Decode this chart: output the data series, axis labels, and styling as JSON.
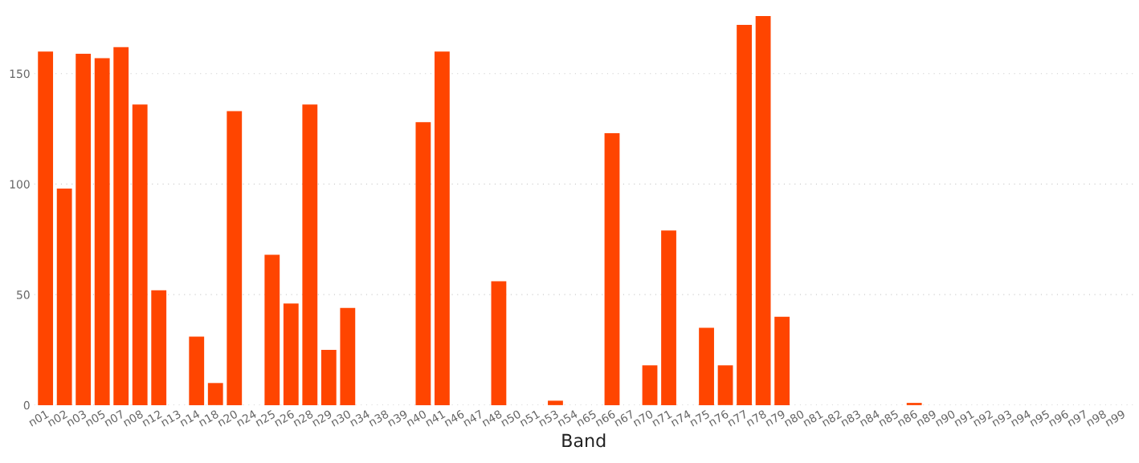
{
  "chart_data": {
    "type": "bar",
    "xlabel": "Band",
    "categories": [
      "n01",
      "n02",
      "n03",
      "n05",
      "n07",
      "n08",
      "n12",
      "n13",
      "n14",
      "n18",
      "n20",
      "n24",
      "n25",
      "n26",
      "n28",
      "n29",
      "n30",
      "n34",
      "n38",
      "n39",
      "n40",
      "n41",
      "n46",
      "n47",
      "n48",
      "n50",
      "n51",
      "n53",
      "n54",
      "n65",
      "n66",
      "n67",
      "n70",
      "n71",
      "n74",
      "n75",
      "n76",
      "n77",
      "n78",
      "n79",
      "n80",
      "n81",
      "n82",
      "n83",
      "n84",
      "n85",
      "n86",
      "n89",
      "n90",
      "n91",
      "n92",
      "n93",
      "n94",
      "n95",
      "n96",
      "n97",
      "n98",
      "n99"
    ],
    "values": [
      160,
      98,
      159,
      157,
      162,
      136,
      52,
      0,
      31,
      10,
      133,
      0,
      68,
      46,
      136,
      25,
      44,
      0,
      0,
      0,
      128,
      160,
      0,
      0,
      56,
      0,
      0,
      2,
      0,
      0,
      123,
      0,
      18,
      79,
      0,
      35,
      18,
      172,
      176,
      40,
      0,
      0,
      0,
      0,
      0,
      0,
      1,
      0,
      0,
      0,
      0,
      0,
      0,
      0,
      0,
      0,
      0,
      0
    ],
    "color": "#ff4500",
    "ylim": [
      0,
      177
    ],
    "yticks": [
      0,
      50,
      100,
      150
    ],
    "grid": "y"
  }
}
